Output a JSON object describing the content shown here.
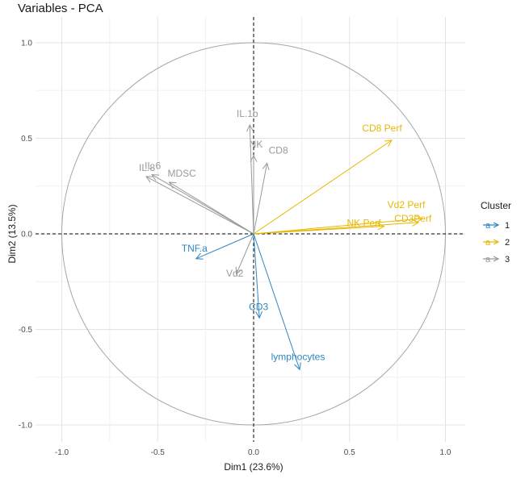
{
  "chart_data": {
    "type": "pca-variable-correlation",
    "title": "Variables - PCA",
    "xlabel": "Dim1 (23.6%)",
    "ylabel": "Dim2 (13.5%)",
    "xlim": [
      -1.0,
      1.0
    ],
    "ylim": [
      -1.0,
      1.0
    ],
    "x_ticks": [
      -1.0,
      -0.5,
      0.0,
      0.5,
      1.0
    ],
    "y_ticks": [
      -1.0,
      -0.5,
      0.0,
      0.5,
      1.0
    ],
    "x_tick_labels": [
      "-1.0",
      "-0.5",
      "0.0",
      "0.5",
      "1.0"
    ],
    "y_tick_labels": [
      "-1.0",
      "-0.5",
      "0.0",
      "0.5",
      "1.0"
    ],
    "grid": true,
    "unit_circle": true,
    "legend": {
      "title": "Cluster",
      "position": "right",
      "glyph": "a",
      "items": [
        {
          "label": "1",
          "color": "#2e86c1"
        },
        {
          "label": "2",
          "color": "#e7b800"
        },
        {
          "label": "3",
          "color": "#999999"
        }
      ]
    },
    "variables": [
      {
        "name": "IL.1b",
        "x": -0.02,
        "y": 0.57,
        "cluster": "3"
      },
      {
        "name": "NK",
        "x": 0.0,
        "y": 0.41,
        "cluster": "3"
      },
      {
        "name": "CD8",
        "x": 0.07,
        "y": 0.37,
        "cluster": "3"
      },
      {
        "name": "IL.8",
        "x": -0.56,
        "y": 0.3,
        "cluster": "3"
      },
      {
        "name": "IL.6",
        "x": -0.53,
        "y": 0.31,
        "cluster": "3"
      },
      {
        "name": "MDSC",
        "x": -0.44,
        "y": 0.27,
        "cluster": "3"
      },
      {
        "name": "Vd2",
        "x": -0.09,
        "y": -0.21,
        "cluster": "3"
      },
      {
        "name": "CD8 Perf",
        "x": 0.72,
        "y": 0.49,
        "cluster": "2"
      },
      {
        "name": "Vd2 Perf",
        "x": 0.88,
        "y": 0.08,
        "cluster": "2"
      },
      {
        "name": "CD3Perf",
        "x": 0.86,
        "y": 0.06,
        "cluster": "2"
      },
      {
        "name": "NK Perf",
        "x": 0.68,
        "y": 0.04,
        "cluster": "2"
      },
      {
        "name": "TNF.a",
        "x": -0.3,
        "y": -0.13,
        "cluster": "1"
      },
      {
        "name": "CD3",
        "x": 0.03,
        "y": -0.44,
        "cluster": "1"
      },
      {
        "name": "lymphocytes",
        "x": 0.24,
        "y": -0.71,
        "cluster": "1"
      }
    ]
  }
}
